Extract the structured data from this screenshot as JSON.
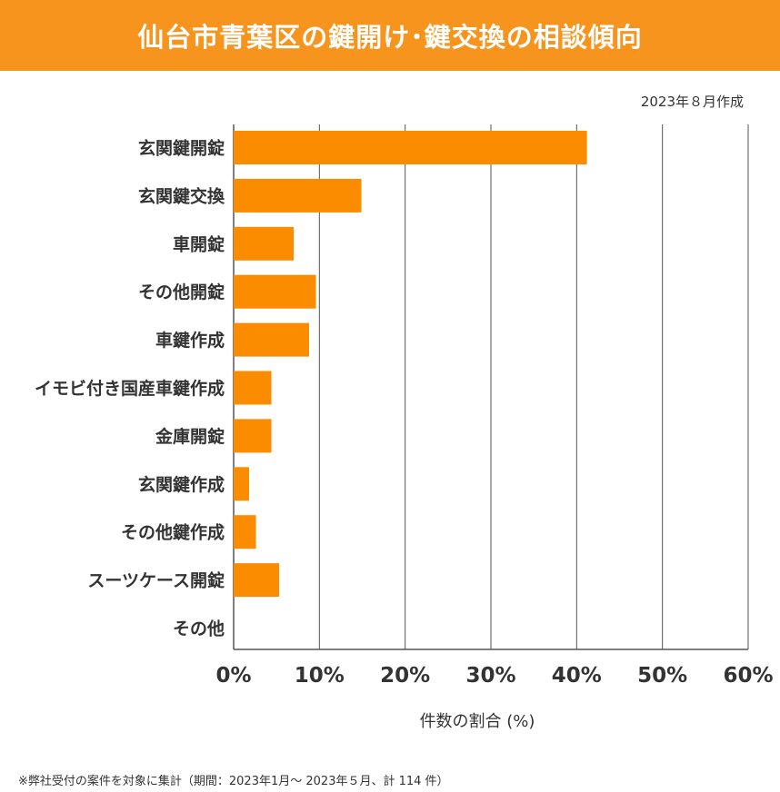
{
  "title": "仙台市青葉区の鍵開け･鍵交換の相談傾向",
  "date_note": "2023年８月作成",
  "footnote": "※弊社受付の案件を対象に集計（期間：2023年1月～ 2023年５月、計 114 件）",
  "colors": {
    "accent": "#f7941d",
    "bar": "#fb8c00",
    "grid": "#555555",
    "text": "#333333"
  },
  "chart_data": {
    "type": "bar",
    "orientation": "horizontal",
    "title": "仙台市青葉区の鍵開け･鍵交換の相談傾向",
    "xlabel": "件数の割合 (%)",
    "ylabel": "",
    "xlim": [
      0,
      60
    ],
    "xticks": [
      0,
      10,
      20,
      30,
      40,
      50,
      60
    ],
    "xtick_labels": [
      "0%",
      "10%",
      "20%",
      "30%",
      "40%",
      "50%",
      "60%"
    ],
    "grid": true,
    "categories": [
      "玄関鍵開錠",
      "玄関鍵交換",
      "車開錠",
      "その他開錠",
      "車鍵作成",
      "イモビ付き国産車鍵作成",
      "金庫開錠",
      "玄関鍵作成",
      "その他鍵作成",
      "スーツケース開錠",
      "その他"
    ],
    "values": [
      41.2,
      14.9,
      7.0,
      9.6,
      8.8,
      4.4,
      4.4,
      1.8,
      2.6,
      5.3,
      0
    ]
  }
}
